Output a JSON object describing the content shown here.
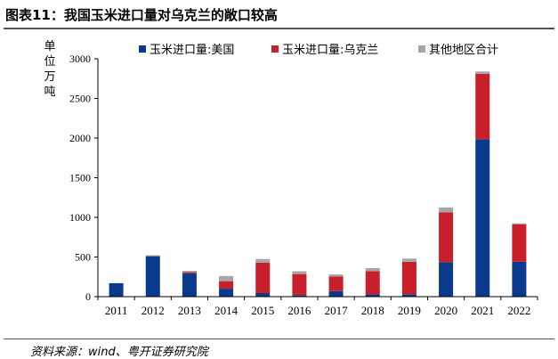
{
  "page": {
    "title": "图表11：我国玉米进口量对乌克兰的敞口较高",
    "source": "资料来源：wind、粤开证券研究院"
  },
  "colors": {
    "us": "#0a3a8c",
    "ukraine": "#c8202b",
    "other": "#a6a6a6"
  },
  "chart_data": {
    "type": "bar",
    "stacked": true,
    "title": "",
    "unit_label": "单位万吨",
    "xlabel": "",
    "ylabel": "",
    "ylim": [
      0,
      3000
    ],
    "yticks": [
      0,
      500,
      1000,
      1500,
      2000,
      2500,
      3000
    ],
    "grid": false,
    "legend_position": "top",
    "categories": [
      "2011",
      "2012",
      "2013",
      "2014",
      "2015",
      "2016",
      "2017",
      "2018",
      "2019",
      "2020",
      "2021",
      "2022"
    ],
    "series": [
      {
        "name": "玉米进口量:美国",
        "color_key": "us",
        "values": [
          170,
          510,
          295,
          100,
          45,
          20,
          70,
          30,
          30,
          435,
          1985,
          440
        ]
      },
      {
        "name": "玉米进口量:乌克兰",
        "color_key": "ukraine",
        "values": [
          0,
          0,
          15,
          95,
          385,
          265,
          185,
          290,
          410,
          630,
          825,
          470
        ]
      },
      {
        "name": "其他地区合计",
        "color_key": "other",
        "values": [
          0,
          12,
          15,
          65,
          45,
          35,
          25,
          40,
          40,
          60,
          30,
          15
        ]
      }
    ]
  }
}
